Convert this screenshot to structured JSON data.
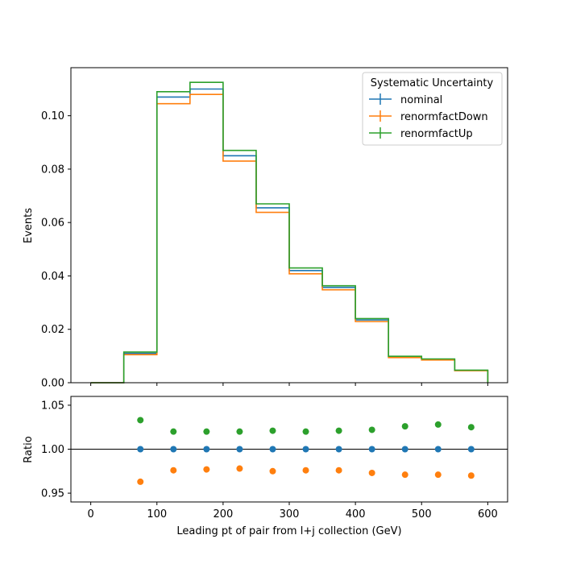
{
  "chart_data": [
    {
      "type": "line",
      "panel": "main",
      "title": "",
      "xlabel": "",
      "ylabel": "Events",
      "xlim": [
        -30,
        630
      ],
      "ylim": [
        0.0,
        0.118
      ],
      "x_ticks": [
        0,
        100,
        200,
        300,
        400,
        500,
        600
      ],
      "y_ticks": [
        0.0,
        0.02,
        0.04,
        0.06,
        0.08,
        0.1
      ],
      "y_tick_labels": [
        "0.00",
        "0.02",
        "0.04",
        "0.06",
        "0.08",
        "0.10"
      ],
      "bin_edges": [
        0,
        50,
        100,
        150,
        200,
        250,
        300,
        350,
        400,
        450,
        500,
        550,
        600
      ],
      "series": [
        {
          "name": "nominal",
          "color": "#1f77b4",
          "values": [
            0.0,
            0.011,
            0.107,
            0.11,
            0.085,
            0.0655,
            0.042,
            0.0357,
            0.0235,
            0.0097,
            0.0087,
            0.0046
          ]
        },
        {
          "name": "renormfactDown",
          "color": "#ff7f0e",
          "values": [
            0.0,
            0.0105,
            0.1045,
            0.108,
            0.083,
            0.0638,
            0.0408,
            0.0348,
            0.0229,
            0.0094,
            0.0085,
            0.0045
          ]
        },
        {
          "name": "renormfactUp",
          "color": "#2ca02c",
          "values": [
            0.0,
            0.0115,
            0.109,
            0.1125,
            0.087,
            0.067,
            0.043,
            0.0363,
            0.024,
            0.0099,
            0.0089,
            0.0047
          ]
        }
      ],
      "legend": {
        "title": "Systematic Uncertainty",
        "placement": "upper right",
        "entries": [
          "nominal",
          "renormfactDown",
          "renormfactUp"
        ]
      },
      "grid": false
    },
    {
      "type": "scatter",
      "panel": "ratio",
      "title": "",
      "xlabel": "Leading pt of pair from l+j collection (GeV)",
      "ylabel": "Ratio",
      "xlim": [
        -30,
        630
      ],
      "ylim": [
        0.94,
        1.06
      ],
      "x_ticks": [
        0,
        100,
        200,
        300,
        400,
        500,
        600
      ],
      "x_tick_labels": [
        "0",
        "100",
        "200",
        "300",
        "400",
        "500",
        "600"
      ],
      "y_ticks": [
        0.95,
        1.0,
        1.05
      ],
      "y_tick_labels": [
        "0.95",
        "1.00",
        "1.05"
      ],
      "reference_line": 1.0,
      "x": [
        75,
        125,
        175,
        225,
        275,
        325,
        375,
        425,
        475,
        525,
        575
      ],
      "series": [
        {
          "name": "nominal",
          "color": "#1f77b4",
          "values": [
            1.0,
            1.0,
            1.0,
            1.0,
            1.0,
            1.0,
            1.0,
            1.0,
            1.0,
            1.0,
            1.0
          ]
        },
        {
          "name": "renormfactDown",
          "color": "#ff7f0e",
          "values": [
            0.963,
            0.976,
            0.977,
            0.978,
            0.975,
            0.976,
            0.976,
            0.973,
            0.971,
            0.971,
            0.97
          ]
        },
        {
          "name": "renormfactUp",
          "color": "#2ca02c",
          "values": [
            1.033,
            1.02,
            1.02,
            1.02,
            1.021,
            1.02,
            1.021,
            1.022,
            1.026,
            1.028,
            1.025
          ]
        }
      ],
      "grid": false
    }
  ]
}
